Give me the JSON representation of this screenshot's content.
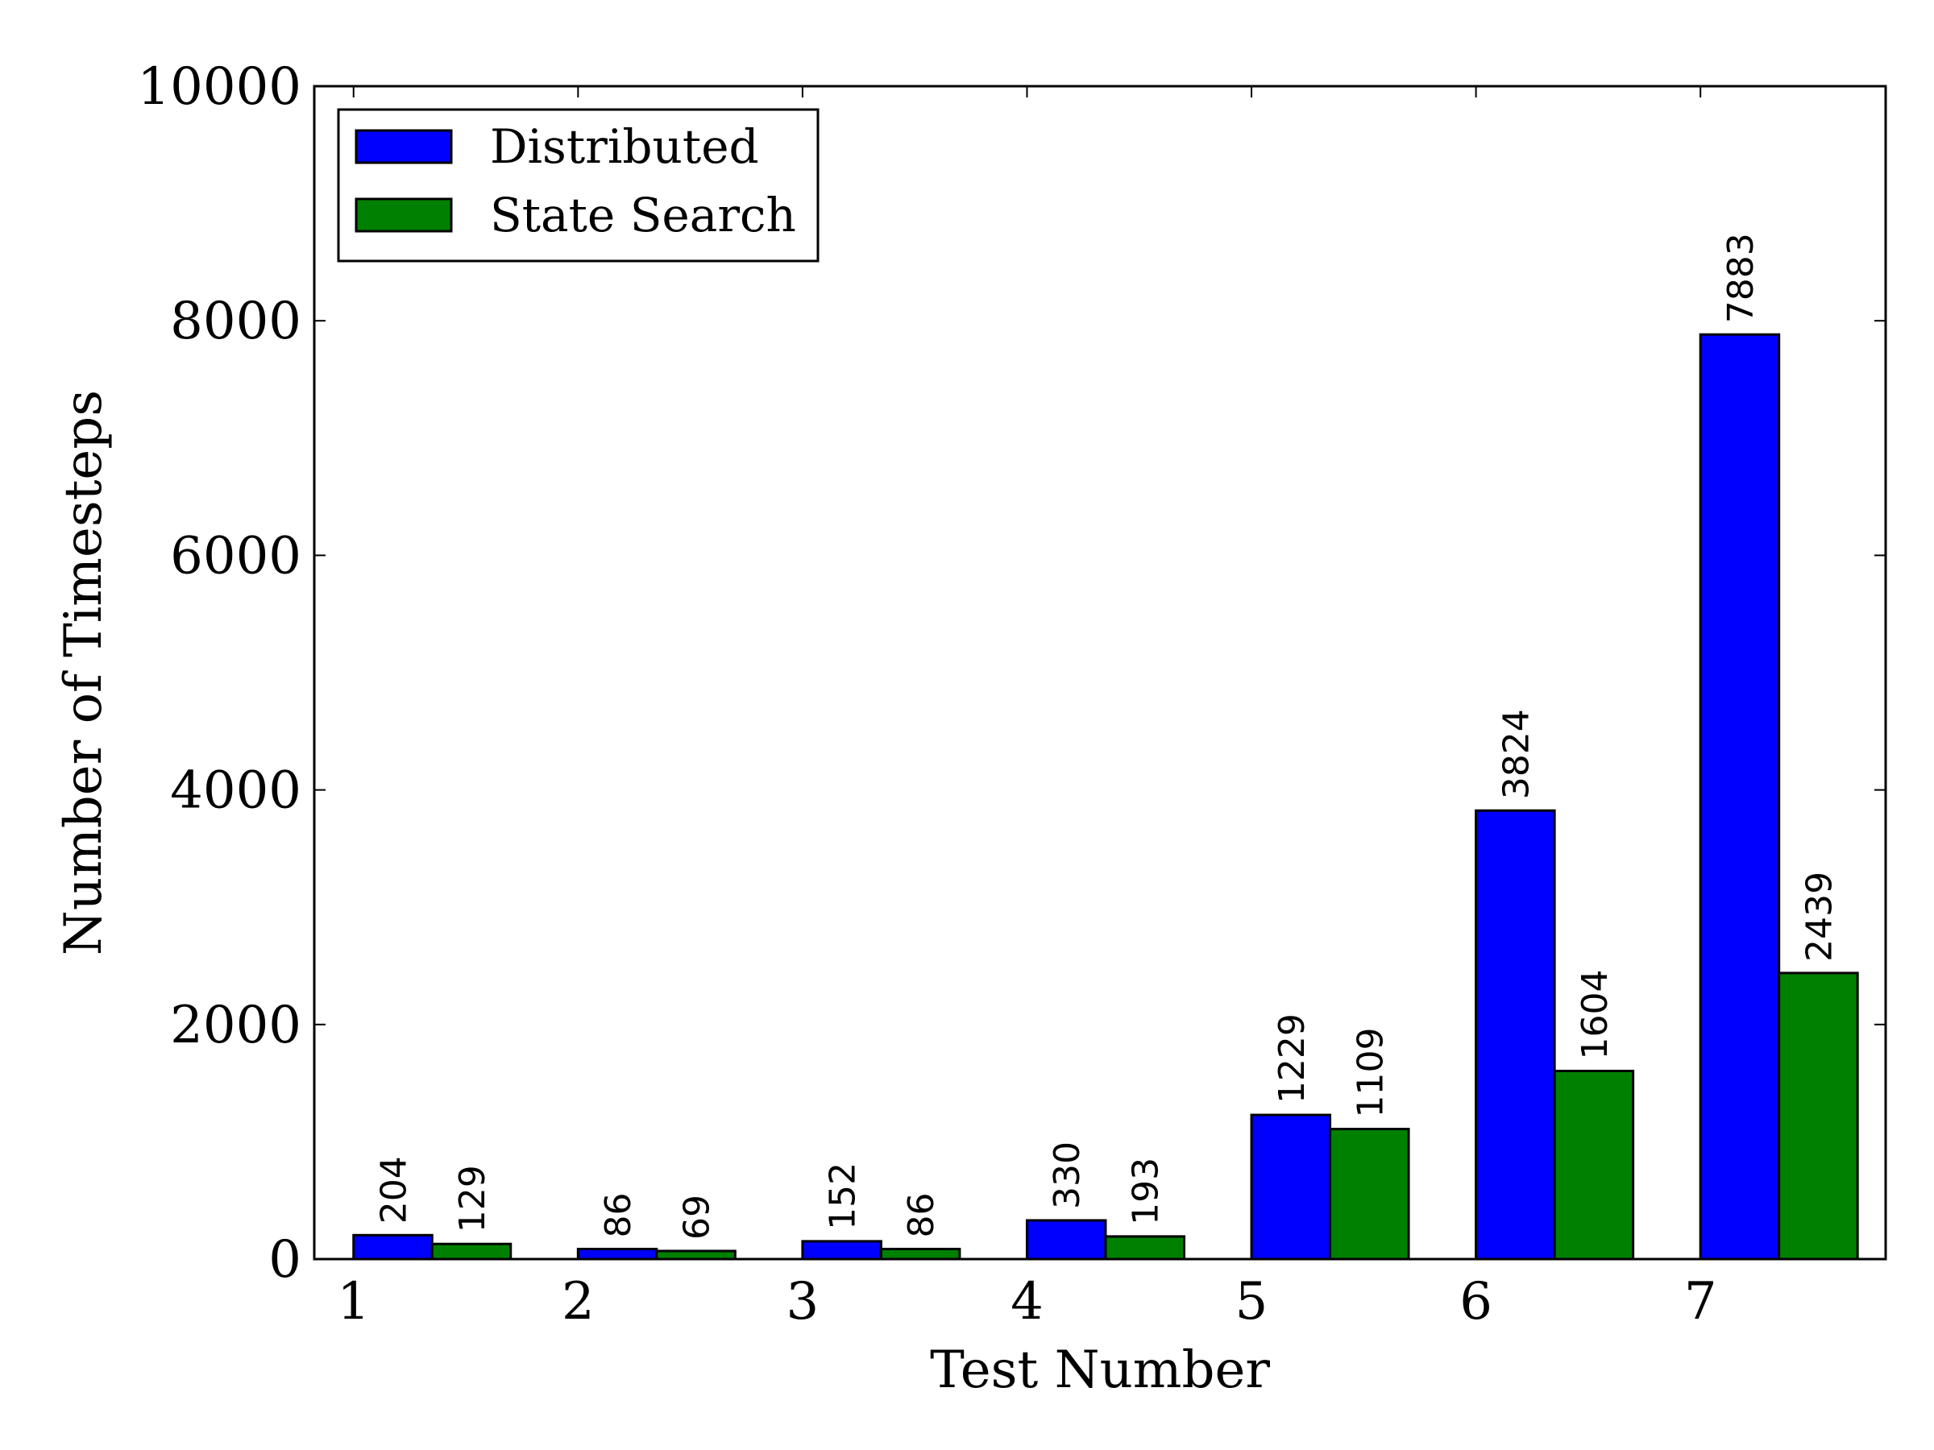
{
  "chart_data": {
    "type": "bar",
    "title": "",
    "xlabel": "Test Number",
    "ylabel": "Number of Timesteps",
    "categories": [
      "1",
      "2",
      "3",
      "4",
      "5",
      "6",
      "7"
    ],
    "series": [
      {
        "name": "Distributed",
        "color": "#0000ff",
        "values": [
          204,
          86,
          152,
          330,
          1229,
          3824,
          7883
        ],
        "labels": [
          "204",
          "86",
          "152",
          "330",
          "1229",
          "3824",
          "7883"
        ]
      },
      {
        "name": "State Search",
        "color": "#008000",
        "values": [
          129,
          69,
          86,
          193,
          1109,
          1604,
          2439
        ],
        "labels": [
          "129",
          "69",
          "86",
          "193",
          "1109",
          "1604",
          "2439"
        ]
      }
    ],
    "ylim": [
      0,
      10000
    ],
    "yticks": [
      0,
      2000,
      4000,
      6000,
      8000,
      10000
    ],
    "ytick_labels": [
      "0",
      "2000",
      "4000",
      "6000",
      "8000",
      "10000"
    ],
    "grid": false,
    "legend_position": "top-left"
  }
}
